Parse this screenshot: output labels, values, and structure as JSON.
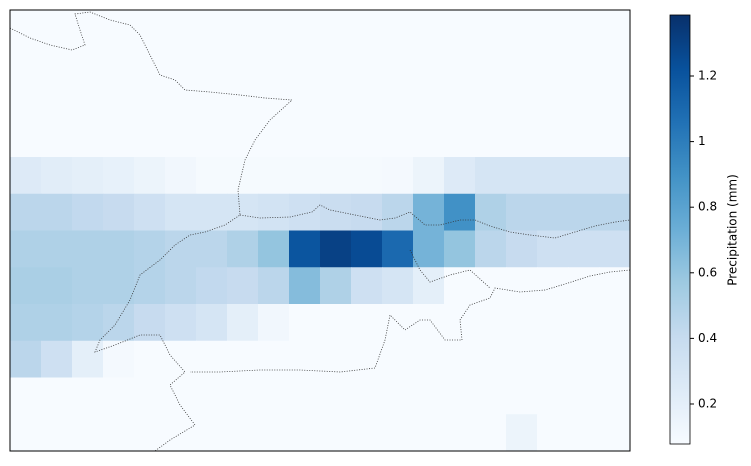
{
  "chart_data": {
    "type": "heatmap",
    "colorbar_label": "Precipitation (mm)",
    "zlim": [
      0.078,
      1.386
    ],
    "zticks": [
      0.2,
      0.4,
      0.6,
      0.8,
      1.0,
      1.2
    ],
    "colormap": [
      "#f7fbff",
      "#deebf7",
      "#c6dbef",
      "#9ecae1",
      "#6baed6",
      "#4292c6",
      "#2171b5",
      "#08519c",
      "#08306b"
    ],
    "z": [
      [
        0.08,
        0.08,
        0.08,
        0.08,
        0.08,
        0.08,
        0.08,
        0.08,
        0.08,
        0.08,
        0.08,
        0.08,
        0.08,
        0.08,
        0.08,
        0.08,
        0.08,
        0.08,
        0.08,
        0.08
      ],
      [
        0.08,
        0.08,
        0.08,
        0.08,
        0.08,
        0.08,
        0.08,
        0.08,
        0.08,
        0.08,
        0.08,
        0.08,
        0.08,
        0.08,
        0.08,
        0.08,
        0.08,
        0.08,
        0.08,
        0.08
      ],
      [
        0.08,
        0.08,
        0.08,
        0.08,
        0.08,
        0.08,
        0.08,
        0.08,
        0.08,
        0.08,
        0.08,
        0.08,
        0.08,
        0.08,
        0.08,
        0.08,
        0.08,
        0.08,
        0.08,
        0.08
      ],
      [
        0.08,
        0.08,
        0.08,
        0.08,
        0.08,
        0.08,
        0.08,
        0.08,
        0.08,
        0.08,
        0.08,
        0.08,
        0.08,
        0.08,
        0.08,
        0.08,
        0.08,
        0.08,
        0.08,
        0.08
      ],
      [
        0.25,
        0.22,
        0.2,
        0.18,
        0.15,
        0.12,
        0.09,
        0.09,
        0.09,
        0.09,
        0.09,
        0.09,
        0.1,
        0.15,
        0.25,
        0.3,
        0.3,
        0.3,
        0.3,
        0.3
      ],
      [
        0.45,
        0.45,
        0.42,
        0.4,
        0.35,
        0.3,
        0.3,
        0.3,
        0.32,
        0.35,
        0.38,
        0.4,
        0.45,
        0.7,
        0.9,
        0.5,
        0.45,
        0.45,
        0.45,
        0.45
      ],
      [
        0.5,
        0.5,
        0.5,
        0.5,
        0.48,
        0.45,
        0.45,
        0.5,
        0.6,
        1.2,
        1.3,
        1.25,
        1.1,
        0.7,
        0.6,
        0.45,
        0.4,
        0.35,
        0.35,
        0.35
      ],
      [
        0.52,
        0.52,
        0.5,
        0.5,
        0.48,
        0.45,
        0.42,
        0.4,
        0.45,
        0.65,
        0.5,
        0.35,
        0.3,
        0.2,
        0.08,
        0.08,
        0.08,
        0.08,
        0.08,
        0.08
      ],
      [
        0.5,
        0.5,
        0.48,
        0.45,
        0.4,
        0.35,
        0.3,
        0.2,
        0.12,
        0.08,
        0.08,
        0.08,
        0.08,
        0.08,
        0.08,
        0.08,
        0.08,
        0.08,
        0.08,
        0.08
      ],
      [
        0.45,
        0.35,
        0.2,
        0.1,
        0.08,
        0.08,
        0.08,
        0.08,
        0.08,
        0.08,
        0.08,
        0.08,
        0.08,
        0.08,
        0.08,
        0.08,
        0.08,
        0.08,
        0.08,
        0.08
      ],
      [
        0.08,
        0.08,
        0.08,
        0.08,
        0.08,
        0.08,
        0.08,
        0.08,
        0.08,
        0.08,
        0.08,
        0.08,
        0.08,
        0.08,
        0.08,
        0.08,
        0.08,
        0.08,
        0.08,
        0.08
      ],
      [
        0.08,
        0.08,
        0.08,
        0.08,
        0.08,
        0.08,
        0.08,
        0.08,
        0.08,
        0.08,
        0.08,
        0.08,
        0.08,
        0.08,
        0.08,
        0.08,
        0.15,
        0.08,
        0.08,
        0.08
      ]
    ]
  }
}
